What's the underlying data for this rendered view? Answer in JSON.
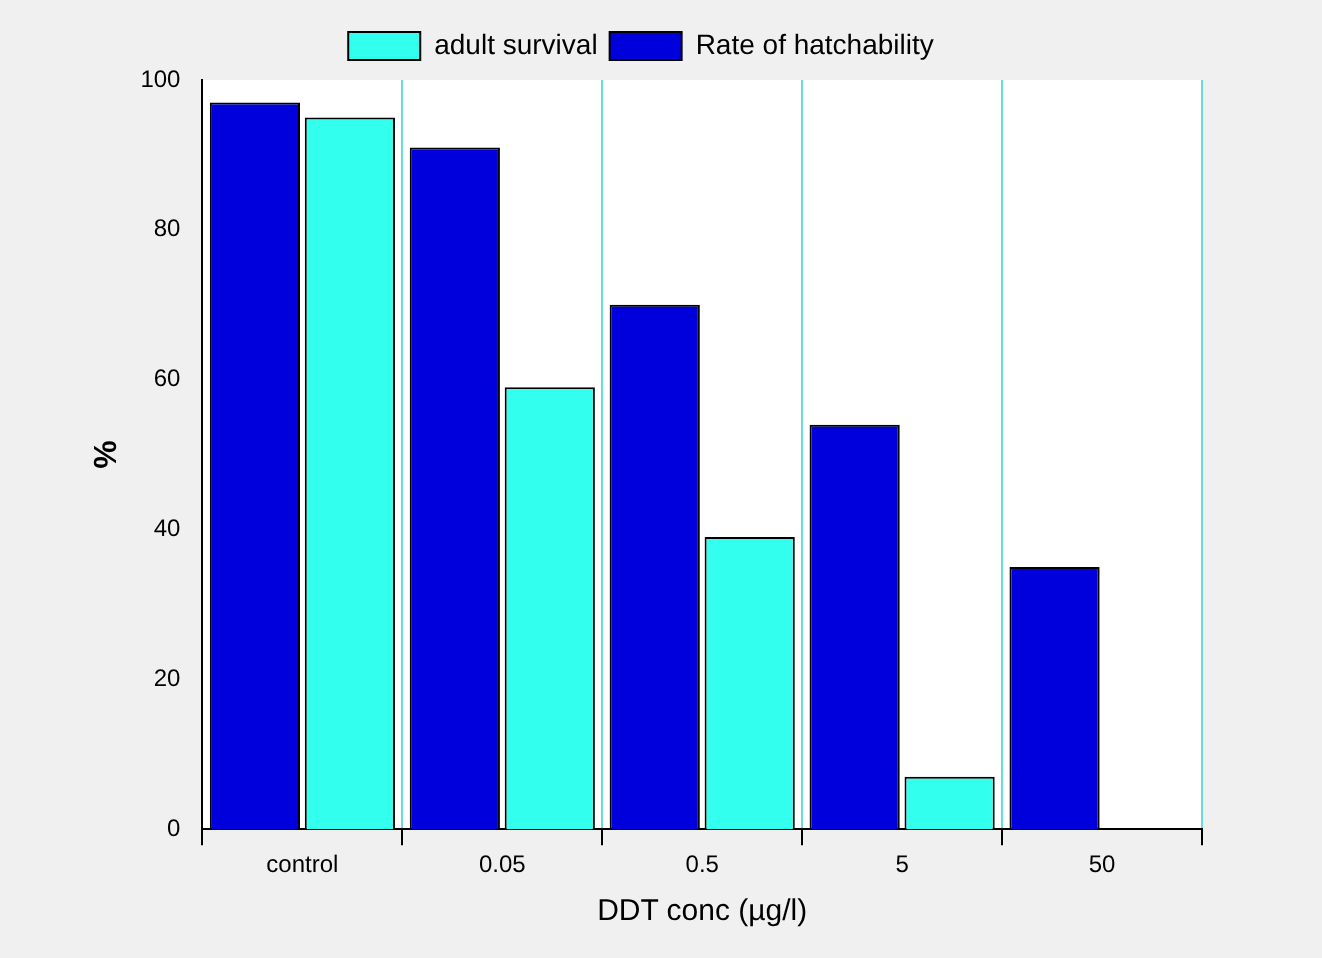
{
  "chart_data": {
    "type": "bar",
    "xlabel": "DDT conc (µg/l)",
    "ylabel": "%",
    "categories": [
      "control",
      "0.05",
      "0.5",
      "5",
      "50"
    ],
    "series": [
      {
        "name": "Rate of hatchability",
        "color": "#0000dd",
        "values": [
          97,
          91,
          70,
          54,
          35
        ]
      },
      {
        "name": "adult survival",
        "color": "#33ffee",
        "values": [
          95,
          59,
          39,
          7,
          null
        ]
      }
    ],
    "ylim": [
      0,
      100
    ],
    "yticks": [
      0,
      20,
      40,
      60,
      80,
      100
    ],
    "grid": "x",
    "legend": "top"
  }
}
